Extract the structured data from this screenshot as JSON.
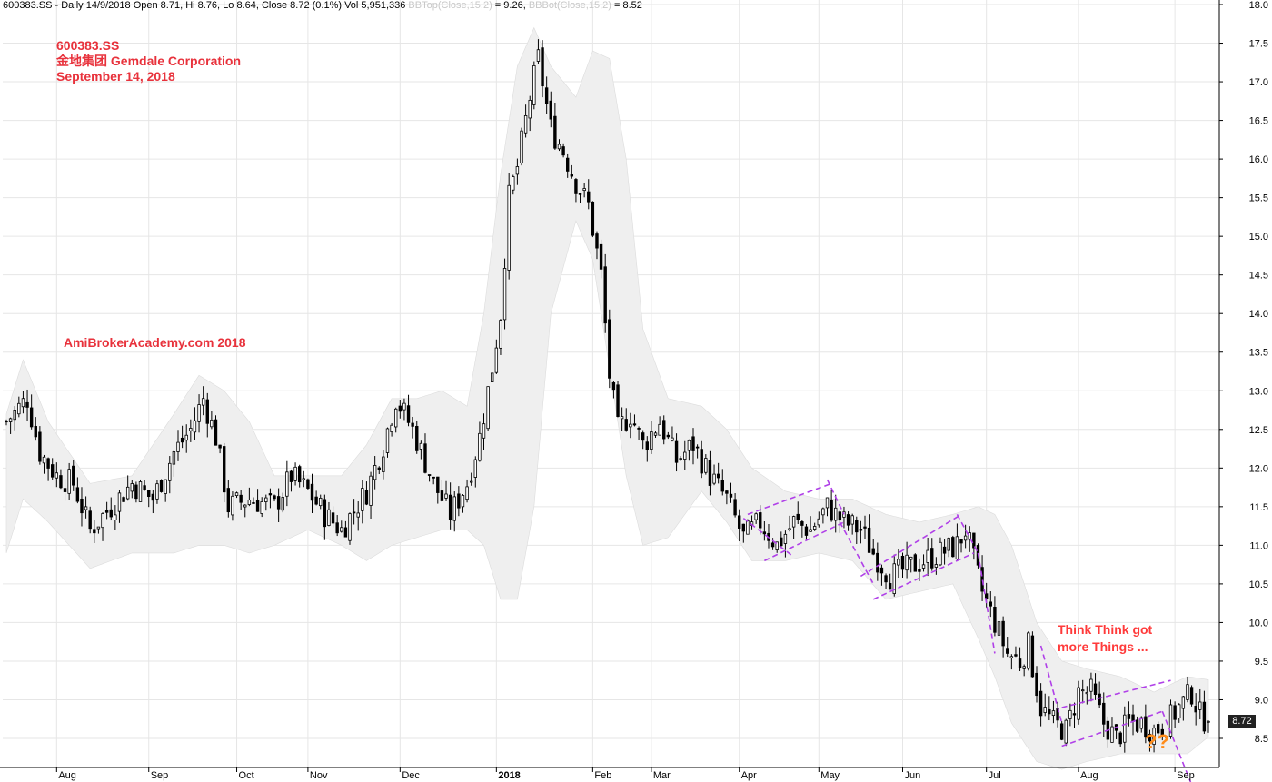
{
  "header": {
    "symbol_line": "600383.SS - Daily 14/9/2018 Open 8.71, Hi 8.76, Lo 8.64, Close 8.72 (0.1%) Vol 5,951,336",
    "bbtop_label": "BBTop(Close,15,2)",
    "bbtop_value": " = 9.26,",
    "bbbot_label": "BBBot(Close,15,2)",
    "bbbot_value": " = 8.52"
  },
  "title": {
    "ticker": "600383.SS",
    "company": "金地集团 Gemdale Corporation",
    "date": "September 14, 2018"
  },
  "site_label": "AmiBrokerAcademy.com   2018",
  "note": {
    "line1": "Think Think got",
    "line2": "more Things ..."
  },
  "question_marks": "??",
  "last_price_badge": "8.72",
  "colors": {
    "annotation_red": "#e8323c",
    "channel_purple": "#b040e8",
    "band_fill": "#efefef",
    "candle": "#000000",
    "question_orange": "#ff8c1a"
  },
  "chart_data": {
    "type": "candlestick",
    "y_ticks": [
      "18.0",
      "17.5",
      "17.0",
      "16.5",
      "16.0",
      "15.5",
      "15.0",
      "14.5",
      "14.0",
      "13.5",
      "13.0",
      "12.5",
      "12.0",
      "11.5",
      "11.0",
      "10.5",
      "10.0",
      "9.5",
      "9.0",
      "8.5"
    ],
    "ylim": [
      8.0,
      18.0
    ],
    "x_months": [
      {
        "label": "Aug",
        "i": 12
      },
      {
        "label": "Sep",
        "i": 34
      },
      {
        "label": "Oct",
        "i": 55
      },
      {
        "label": "Nov",
        "i": 72
      },
      {
        "label": "Dec",
        "i": 94
      },
      {
        "label": "2018",
        "i": 117
      },
      {
        "label": "Feb",
        "i": 140
      },
      {
        "label": "Mar",
        "i": 154
      },
      {
        "label": "Apr",
        "i": 175
      },
      {
        "label": "May",
        "i": 194
      },
      {
        "label": "Jun",
        "i": 214
      },
      {
        "label": "Jul",
        "i": 234
      },
      {
        "label": "Aug",
        "i": 256
      },
      {
        "label": "Sep",
        "i": 279
      }
    ],
    "n_bars": 288,
    "closes": [
      {
        "i": 0,
        "v": 12.6
      },
      {
        "i": 5,
        "v": 12.9
      },
      {
        "i": 8,
        "v": 12.2
      },
      {
        "i": 12,
        "v": 11.9
      },
      {
        "i": 16,
        "v": 11.8
      },
      {
        "i": 20,
        "v": 11.2
      },
      {
        "i": 25,
        "v": 11.5
      },
      {
        "i": 30,
        "v": 11.8
      },
      {
        "i": 35,
        "v": 11.6
      },
      {
        "i": 40,
        "v": 12.2
      },
      {
        "i": 44,
        "v": 12.5
      },
      {
        "i": 47,
        "v": 12.9
      },
      {
        "i": 50,
        "v": 12.4
      },
      {
        "i": 53,
        "v": 11.5
      },
      {
        "i": 58,
        "v": 11.6
      },
      {
        "i": 64,
        "v": 11.5
      },
      {
        "i": 68,
        "v": 11.9
      },
      {
        "i": 72,
        "v": 11.7
      },
      {
        "i": 76,
        "v": 11.4
      },
      {
        "i": 80,
        "v": 11.2
      },
      {
        "i": 86,
        "v": 11.7
      },
      {
        "i": 90,
        "v": 12.3
      },
      {
        "i": 93,
        "v": 12.9
      },
      {
        "i": 97,
        "v": 12.5
      },
      {
        "i": 102,
        "v": 11.8
      },
      {
        "i": 106,
        "v": 11.4
      },
      {
        "i": 110,
        "v": 11.8
      },
      {
        "i": 113,
        "v": 12.4
      },
      {
        "i": 116,
        "v": 13.3
      },
      {
        "i": 118,
        "v": 14.0
      },
      {
        "i": 120,
        "v": 15.5
      },
      {
        "i": 122,
        "v": 15.9
      },
      {
        "i": 125,
        "v": 16.8
      },
      {
        "i": 127,
        "v": 17.3
      },
      {
        "i": 130,
        "v": 16.4
      },
      {
        "i": 133,
        "v": 16.1
      },
      {
        "i": 136,
        "v": 15.7
      },
      {
        "i": 139,
        "v": 15.4
      },
      {
        "i": 142,
        "v": 14.5
      },
      {
        "i": 144,
        "v": 13.2
      },
      {
        "i": 146,
        "v": 12.5
      },
      {
        "i": 149,
        "v": 12.7
      },
      {
        "i": 152,
        "v": 12.3
      },
      {
        "i": 156,
        "v": 12.6
      },
      {
        "i": 160,
        "v": 12.1
      },
      {
        "i": 164,
        "v": 12.3
      },
      {
        "i": 168,
        "v": 11.9
      },
      {
        "i": 172,
        "v": 11.6
      },
      {
        "i": 176,
        "v": 11.1
      },
      {
        "i": 180,
        "v": 11.3
      },
      {
        "i": 184,
        "v": 11.0
      },
      {
        "i": 188,
        "v": 11.3
      },
      {
        "i": 192,
        "v": 11.2
      },
      {
        "i": 196,
        "v": 11.5
      },
      {
        "i": 200,
        "v": 11.3
      },
      {
        "i": 204,
        "v": 11.2
      },
      {
        "i": 207,
        "v": 10.9
      },
      {
        "i": 211,
        "v": 10.6
      },
      {
        "i": 215,
        "v": 10.7
      },
      {
        "i": 219,
        "v": 10.8
      },
      {
        "i": 223,
        "v": 10.9
      },
      {
        "i": 227,
        "v": 11.0
      },
      {
        "i": 229,
        "v": 11.2
      },
      {
        "i": 231,
        "v": 10.8
      },
      {
        "i": 233,
        "v": 10.4
      },
      {
        "i": 236,
        "v": 10.0
      },
      {
        "i": 239,
        "v": 9.6
      },
      {
        "i": 242,
        "v": 9.5
      },
      {
        "i": 244,
        "v": 9.7
      },
      {
        "i": 247,
        "v": 8.9
      },
      {
        "i": 250,
        "v": 8.7
      },
      {
        "i": 253,
        "v": 8.6
      },
      {
        "i": 256,
        "v": 9.1
      },
      {
        "i": 259,
        "v": 9.1
      },
      {
        "i": 262,
        "v": 8.7
      },
      {
        "i": 265,
        "v": 8.5
      },
      {
        "i": 268,
        "v": 8.7
      },
      {
        "i": 271,
        "v": 8.7
      },
      {
        "i": 274,
        "v": 8.6
      },
      {
        "i": 277,
        "v": 8.7
      },
      {
        "i": 280,
        "v": 8.9
      },
      {
        "i": 283,
        "v": 9.1
      },
      {
        "i": 285,
        "v": 8.8
      },
      {
        "i": 287,
        "v": 8.72
      }
    ],
    "bb_upper": [
      {
        "i": 0,
        "v": 12.7
      },
      {
        "i": 4,
        "v": 13.4
      },
      {
        "i": 10,
        "v": 12.6
      },
      {
        "i": 20,
        "v": 11.8
      },
      {
        "i": 30,
        "v": 11.9
      },
      {
        "i": 40,
        "v": 12.7
      },
      {
        "i": 46,
        "v": 13.2
      },
      {
        "i": 52,
        "v": 13.0
      },
      {
        "i": 58,
        "v": 12.6
      },
      {
        "i": 64,
        "v": 11.9
      },
      {
        "i": 72,
        "v": 11.9
      },
      {
        "i": 80,
        "v": 11.9
      },
      {
        "i": 86,
        "v": 12.3
      },
      {
        "i": 92,
        "v": 12.9
      },
      {
        "i": 98,
        "v": 12.9
      },
      {
        "i": 104,
        "v": 13.0
      },
      {
        "i": 110,
        "v": 12.8
      },
      {
        "i": 114,
        "v": 14.0
      },
      {
        "i": 118,
        "v": 15.8
      },
      {
        "i": 122,
        "v": 17.2
      },
      {
        "i": 126,
        "v": 17.7
      },
      {
        "i": 130,
        "v": 17.2
      },
      {
        "i": 136,
        "v": 16.8
      },
      {
        "i": 140,
        "v": 17.4
      },
      {
        "i": 144,
        "v": 17.3
      },
      {
        "i": 148,
        "v": 16.0
      },
      {
        "i": 152,
        "v": 13.8
      },
      {
        "i": 158,
        "v": 12.9
      },
      {
        "i": 166,
        "v": 12.8
      },
      {
        "i": 172,
        "v": 12.5
      },
      {
        "i": 178,
        "v": 12.0
      },
      {
        "i": 186,
        "v": 11.7
      },
      {
        "i": 194,
        "v": 11.6
      },
      {
        "i": 202,
        "v": 11.6
      },
      {
        "i": 210,
        "v": 11.4
      },
      {
        "i": 218,
        "v": 11.3
      },
      {
        "i": 226,
        "v": 11.4
      },
      {
        "i": 232,
        "v": 11.5
      },
      {
        "i": 236,
        "v": 11.4
      },
      {
        "i": 240,
        "v": 11.0
      },
      {
        "i": 246,
        "v": 10.0
      },
      {
        "i": 252,
        "v": 9.5
      },
      {
        "i": 258,
        "v": 9.4
      },
      {
        "i": 266,
        "v": 9.3
      },
      {
        "i": 274,
        "v": 9.1
      },
      {
        "i": 282,
        "v": 9.3
      },
      {
        "i": 287,
        "v": 9.26
      }
    ],
    "bb_lower": [
      {
        "i": 0,
        "v": 10.9
      },
      {
        "i": 4,
        "v": 11.6
      },
      {
        "i": 10,
        "v": 11.3
      },
      {
        "i": 20,
        "v": 10.7
      },
      {
        "i": 30,
        "v": 10.9
      },
      {
        "i": 40,
        "v": 10.9
      },
      {
        "i": 46,
        "v": 11.0
      },
      {
        "i": 52,
        "v": 11.0
      },
      {
        "i": 58,
        "v": 10.9
      },
      {
        "i": 64,
        "v": 11.0
      },
      {
        "i": 72,
        "v": 11.2
      },
      {
        "i": 80,
        "v": 11.0
      },
      {
        "i": 86,
        "v": 10.8
      },
      {
        "i": 92,
        "v": 11.0
      },
      {
        "i": 98,
        "v": 11.1
      },
      {
        "i": 104,
        "v": 11.2
      },
      {
        "i": 110,
        "v": 11.2
      },
      {
        "i": 114,
        "v": 11.0
      },
      {
        "i": 118,
        "v": 10.3
      },
      {
        "i": 122,
        "v": 10.3
      },
      {
        "i": 126,
        "v": 11.5
      },
      {
        "i": 130,
        "v": 14.0
      },
      {
        "i": 136,
        "v": 15.2
      },
      {
        "i": 140,
        "v": 14.7
      },
      {
        "i": 144,
        "v": 13.3
      },
      {
        "i": 148,
        "v": 11.9
      },
      {
        "i": 152,
        "v": 11.0
      },
      {
        "i": 158,
        "v": 11.1
      },
      {
        "i": 166,
        "v": 11.7
      },
      {
        "i": 172,
        "v": 11.3
      },
      {
        "i": 178,
        "v": 10.8
      },
      {
        "i": 186,
        "v": 10.8
      },
      {
        "i": 194,
        "v": 10.9
      },
      {
        "i": 202,
        "v": 10.8
      },
      {
        "i": 210,
        "v": 10.3
      },
      {
        "i": 218,
        "v": 10.4
      },
      {
        "i": 226,
        "v": 10.5
      },
      {
        "i": 232,
        "v": 9.8
      },
      {
        "i": 236,
        "v": 9.3
      },
      {
        "i": 240,
        "v": 8.7
      },
      {
        "i": 246,
        "v": 8.2
      },
      {
        "i": 252,
        "v": 8.1
      },
      {
        "i": 258,
        "v": 8.2
      },
      {
        "i": 266,
        "v": 8.3
      },
      {
        "i": 274,
        "v": 8.3
      },
      {
        "i": 282,
        "v": 8.3
      },
      {
        "i": 287,
        "v": 8.52
      }
    ],
    "channel_lines": [
      [
        176,
        11.35,
        188,
        10.85
      ],
      [
        177,
        11.4,
        197,
        11.8
      ],
      [
        181,
        10.8,
        200,
        11.3
      ],
      [
        196,
        11.85,
        200,
        11.4
      ],
      [
        199,
        11.3,
        207,
        10.5
      ],
      [
        204,
        10.6,
        228,
        11.4
      ],
      [
        207,
        10.3,
        231,
        10.9
      ],
      [
        227,
        11.4,
        232,
        10.9
      ],
      [
        232,
        10.9,
        236,
        9.6
      ],
      [
        247,
        9.7,
        252,
        8.7
      ],
      [
        252,
        8.9,
        278,
        9.25
      ],
      [
        252,
        8.4,
        276,
        8.85
      ],
      [
        276,
        8.85,
        283,
        7.9
      ]
    ],
    "last_price": 8.72
  }
}
